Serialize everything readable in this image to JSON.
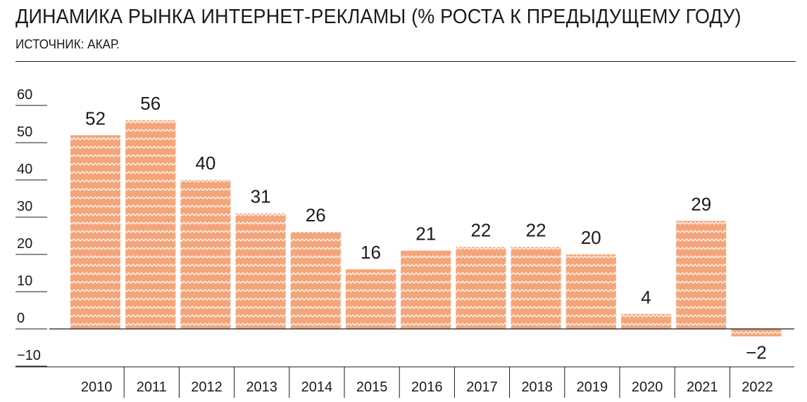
{
  "header": {
    "title": "ДИНАМИКА РЫНКА ИНТЕРНЕТ-РЕКЛАМЫ (% РОСТА К ПРЕДЫДУЩЕМУ ГОДУ)",
    "source": "ИСТОЧНИК: АКАР."
  },
  "colors": {
    "bar_fill": "#F5A57A",
    "bar_pattern": "#FFFFFF",
    "text": "#1A1A1A",
    "axis": "#1A1A1A"
  },
  "chart_data": {
    "type": "bar",
    "title": "ДИНАМИКА РЫНКА ИНТЕРНЕТ-РЕКЛАМЫ (% РОСТА К ПРЕДЫДУЩЕМУ ГОДУ)",
    "subtitle": "ИСТОЧНИК: АКАР.",
    "xlabel": "",
    "ylabel": "",
    "categories": [
      "2010",
      "2011",
      "2012",
      "2013",
      "2014",
      "2015",
      "2016",
      "2017",
      "2018",
      "2019",
      "2020",
      "2021",
      "2022"
    ],
    "values": [
      52,
      56,
      40,
      31,
      26,
      16,
      21,
      22,
      22,
      20,
      4,
      29,
      -2
    ],
    "data_labels": [
      "52",
      "56",
      "40",
      "31",
      "26",
      "16",
      "21",
      "22",
      "22",
      "20",
      "4",
      "29",
      "−2"
    ],
    "ylim": [
      -10,
      60
    ],
    "yticks": [
      60,
      50,
      40,
      30,
      20,
      10,
      0,
      -10
    ],
    "ytick_labels": [
      "60",
      "50",
      "40",
      "30",
      "20",
      "10",
      "0",
      "−10"
    ],
    "grid": false,
    "legend": "none"
  }
}
